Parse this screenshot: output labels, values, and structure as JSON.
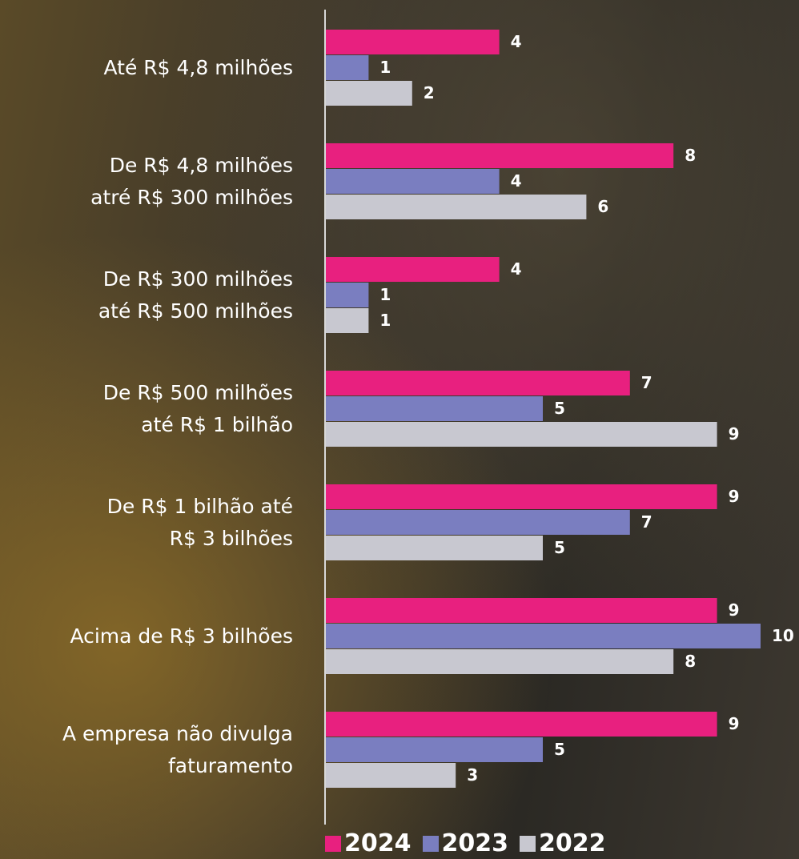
{
  "chart_data": {
    "type": "bar",
    "orientation": "horizontal",
    "categories": [
      "Até R$ 4,8 milhões",
      "De R$ 4,8 milhões\natré R$ 300 milhões",
      "De R$ 300 milhões\naté R$ 500 milhões",
      "De R$ 500 milhões\naté R$ 1 bilhão",
      "De R$ 1 bilhão até\nR$ 3 bilhões",
      "Acima de R$ 3 bilhões",
      "A empresa não divulga\nfaturamento"
    ],
    "series": [
      {
        "name": "2024",
        "color": "#e8207f",
        "values": [
          4,
          8,
          4,
          7,
          9,
          9,
          9
        ]
      },
      {
        "name": "2023",
        "color": "#7a7ec0",
        "values": [
          1,
          4,
          1,
          5,
          7,
          10,
          5
        ]
      },
      {
        "name": "2022",
        "color": "#c8c8d0",
        "values": [
          2,
          6,
          1,
          9,
          5,
          8,
          3
        ]
      }
    ],
    "xlim": [
      0,
      10
    ]
  }
}
